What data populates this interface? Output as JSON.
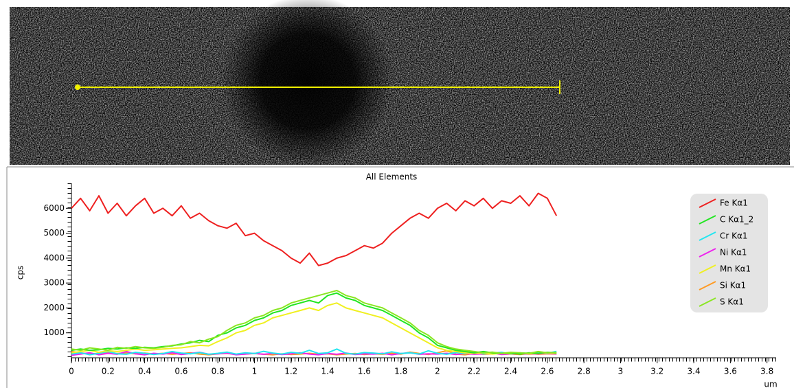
{
  "chart_data": {
    "type": "line",
    "title": "All Elements",
    "x_label": "um",
    "y_label": "cps",
    "xlim": [
      0,
      3.85
    ],
    "ylim": [
      0,
      7000
    ],
    "xticks": [
      0,
      0.2,
      0.4,
      0.6,
      0.8,
      1,
      1.2,
      1.4,
      1.6,
      1.8,
      2,
      2.2,
      2.4,
      2.6,
      2.8,
      3,
      3.2,
      3.4,
      3.6,
      3.8
    ],
    "yticks": [
      1000,
      2000,
      3000,
      4000,
      5000,
      6000
    ],
    "legend": "upper right",
    "x": [
      0,
      0.05,
      0.1,
      0.15,
      0.2,
      0.25,
      0.3,
      0.35,
      0.4,
      0.45,
      0.5,
      0.55,
      0.6,
      0.65,
      0.7,
      0.75,
      0.8,
      0.85,
      0.9,
      0.95,
      1,
      1.05,
      1.1,
      1.15,
      1.2,
      1.25,
      1.3,
      1.35,
      1.4,
      1.45,
      1.5,
      1.55,
      1.6,
      1.65,
      1.7,
      1.75,
      1.8,
      1.85,
      1.9,
      1.95,
      2,
      2.05,
      2.1,
      2.15,
      2.2,
      2.25,
      2.3,
      2.35,
      2.4,
      2.45,
      2.5,
      2.55,
      2.6,
      2.65
    ],
    "series": [
      {
        "name": "Fe Kα1",
        "color": "#ee2020",
        "values": [
          6000,
          6400,
          5900,
          6500,
          5800,
          6200,
          5700,
          6100,
          6400,
          5800,
          6000,
          5700,
          6100,
          5600,
          5800,
          5500,
          5300,
          5200,
          5400,
          4900,
          5000,
          4700,
          4500,
          4300,
          4000,
          3800,
          4200,
          3700,
          3800,
          4000,
          4100,
          4300,
          4500,
          4400,
          4600,
          5000,
          5300,
          5600,
          5800,
          5600,
          6000,
          6200,
          5900,
          6300,
          6100,
          6400,
          6000,
          6300,
          6200,
          6500,
          6100,
          6600,
          6400,
          5700
        ]
      },
      {
        "name": "C Kα1_2",
        "color": "#22e622",
        "values": [
          300,
          350,
          300,
          320,
          380,
          350,
          400,
          380,
          420,
          400,
          450,
          480,
          550,
          600,
          700,
          650,
          900,
          1000,
          1200,
          1300,
          1500,
          1600,
          1800,
          1900,
          2100,
          2200,
          2300,
          2200,
          2500,
          2600,
          2400,
          2300,
          2100,
          2000,
          1900,
          1700,
          1500,
          1300,
          1000,
          800,
          500,
          400,
          300,
          250,
          200,
          250,
          200,
          180,
          200,
          150,
          200,
          180,
          220,
          200
        ]
      },
      {
        "name": "Cr Kα1",
        "color": "#22e6f0",
        "values": [
          150,
          200,
          120,
          180,
          250,
          160,
          140,
          220,
          180,
          130,
          170,
          250,
          190,
          160,
          210,
          140,
          180,
          230,
          150,
          200,
          170,
          260,
          190,
          150,
          220,
          180,
          300,
          170,
          200,
          350,
          180,
          150,
          210,
          190,
          160,
          240,
          170,
          200,
          150,
          280,
          180,
          140,
          210,
          170,
          250,
          160,
          190,
          220,
          150,
          200,
          170,
          240,
          180,
          260
        ]
      },
      {
        "name": "Ni Kα1",
        "color": "#ee22ee",
        "values": [
          100,
          150,
          200,
          120,
          180,
          140,
          250,
          160,
          120,
          180,
          150,
          200,
          130,
          170,
          220,
          140,
          160,
          190,
          120,
          150,
          180,
          140,
          170,
          130,
          160,
          200,
          150,
          120,
          170,
          140,
          190,
          130,
          160,
          150,
          180,
          120,
          170,
          200,
          140,
          160,
          150,
          180,
          130,
          170,
          140,
          160,
          190,
          130,
          150,
          170,
          140,
          160,
          180,
          150
        ]
      },
      {
        "name": "Mn Kα1",
        "color": "#f0f020",
        "values": [
          200,
          250,
          300,
          220,
          280,
          250,
          300,
          350,
          300,
          320,
          350,
          380,
          400,
          450,
          500,
          480,
          650,
          800,
          1000,
          1100,
          1300,
          1400,
          1600,
          1700,
          1800,
          1900,
          2000,
          1900,
          2100,
          2200,
          2000,
          1900,
          1800,
          1700,
          1600,
          1400,
          1200,
          1000,
          800,
          600,
          400,
          300,
          250,
          200,
          180,
          200,
          150,
          180,
          160,
          200,
          150,
          180,
          200,
          170
        ]
      },
      {
        "name": "Si Kα1",
        "color": "#ff9a22",
        "values": [
          250,
          200,
          150,
          180,
          220,
          170,
          200,
          160,
          190,
          150,
          180,
          140,
          170,
          200,
          150,
          120,
          160,
          180,
          130,
          150,
          170,
          140,
          120,
          160,
          130,
          150,
          180,
          140,
          160,
          120,
          150,
          170,
          130,
          160,
          140,
          180,
          150,
          230,
          170,
          130,
          200,
          280,
          150,
          120,
          170,
          140,
          160,
          190,
          150,
          130,
          170,
          140,
          160,
          150
        ]
      },
      {
        "name": "S Kα1",
        "color": "#8ae622",
        "values": [
          350,
          300,
          400,
          350,
          300,
          420,
          380,
          450,
          400,
          380,
          420,
          500,
          520,
          650,
          600,
          750,
          850,
          1100,
          1300,
          1400,
          1600,
          1700,
          1900,
          2000,
          2200,
          2300,
          2400,
          2500,
          2600,
          2700,
          2500,
          2400,
          2200,
          2100,
          2000,
          1800,
          1600,
          1400,
          1100,
          900,
          600,
          450,
          350,
          300,
          250,
          200,
          230,
          180,
          220,
          200,
          180,
          250,
          200,
          220
        ]
      }
    ]
  }
}
